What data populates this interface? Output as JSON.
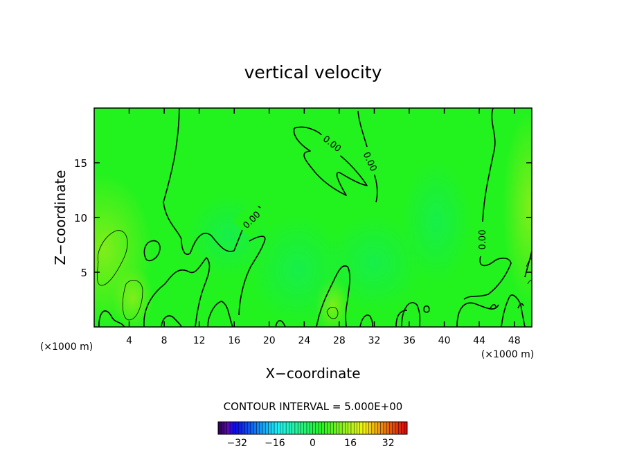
{
  "chart_data": {
    "type": "heatmap",
    "title": "vertical velocity",
    "xlabel": "X−coordinate",
    "ylabel": "Z−coordinate",
    "x_unit_left": "(×1000 m)",
    "x_unit_right": "(×1000 m)",
    "xlim": [
      0,
      50
    ],
    "ylim": [
      0,
      20
    ],
    "x_ticks": [
      4,
      8,
      12,
      16,
      20,
      24,
      28,
      32,
      36,
      40,
      44,
      48
    ],
    "x_tick_labels": [
      "4",
      "8",
      "12",
      "16",
      "20",
      "24",
      "28",
      "32",
      "36",
      "40",
      "44",
      "48"
    ],
    "y_ticks": [
      5,
      10,
      15
    ],
    "y_tick_labels": [
      "5",
      "10",
      "15"
    ],
    "contour_labels": [
      "0.00",
      "0.00",
      "0.00",
      "0.00"
    ],
    "contour_interval_label": "CONTOUR INTERVAL = 5.000E+00",
    "colorbar": {
      "range": [
        -40,
        40
      ],
      "ticks": [
        -32,
        -16,
        0,
        16,
        32
      ],
      "tick_labels": [
        "−32",
        "−16",
        "0",
        "16",
        "32"
      ]
    },
    "grid": false,
    "colors": {
      "field_background": "#22f21e",
      "field_positive": "#80f020",
      "field_negative": "#18f24a",
      "contour_line": "#000000"
    }
  }
}
